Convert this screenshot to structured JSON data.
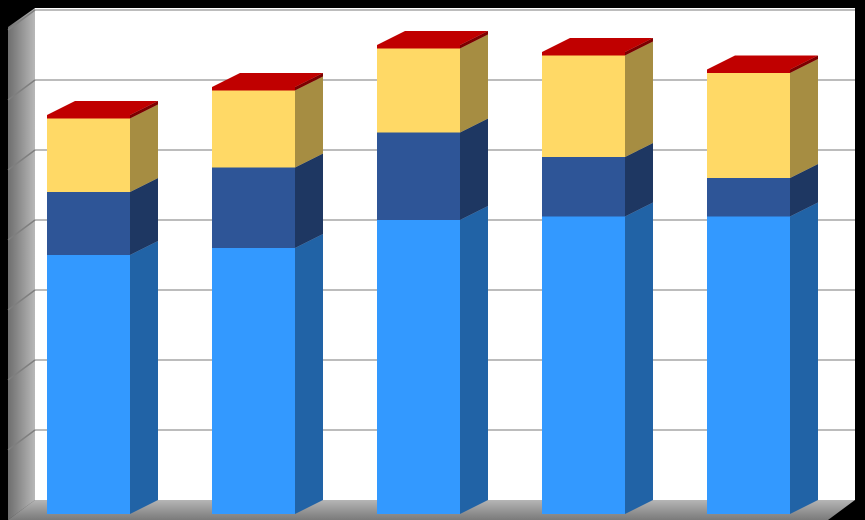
{
  "chart_data": {
    "type": "bar",
    "stacked": true,
    "three_d": true,
    "title": "",
    "xlabel": "",
    "ylabel": "",
    "categories": [
      "",
      "",
      "",
      "",
      ""
    ],
    "ylim": [
      0,
      7
    ],
    "grid": true,
    "legend": "none",
    "series": [
      {
        "values": [
          3.7,
          3.8,
          4.2,
          4.25,
          4.25
        ],
        "color": "#3399ff"
      },
      {
        "values": [
          0.9,
          1.15,
          1.25,
          0.85,
          0.55
        ],
        "color": "#2e5597"
      },
      {
        "values": [
          1.05,
          1.1,
          1.2,
          1.45,
          1.5
        ],
        "color": "#ffd966"
      },
      {
        "values": [
          0.05,
          0.05,
          0.05,
          0.05,
          0.05
        ],
        "color": "#c00000"
      }
    ]
  }
}
